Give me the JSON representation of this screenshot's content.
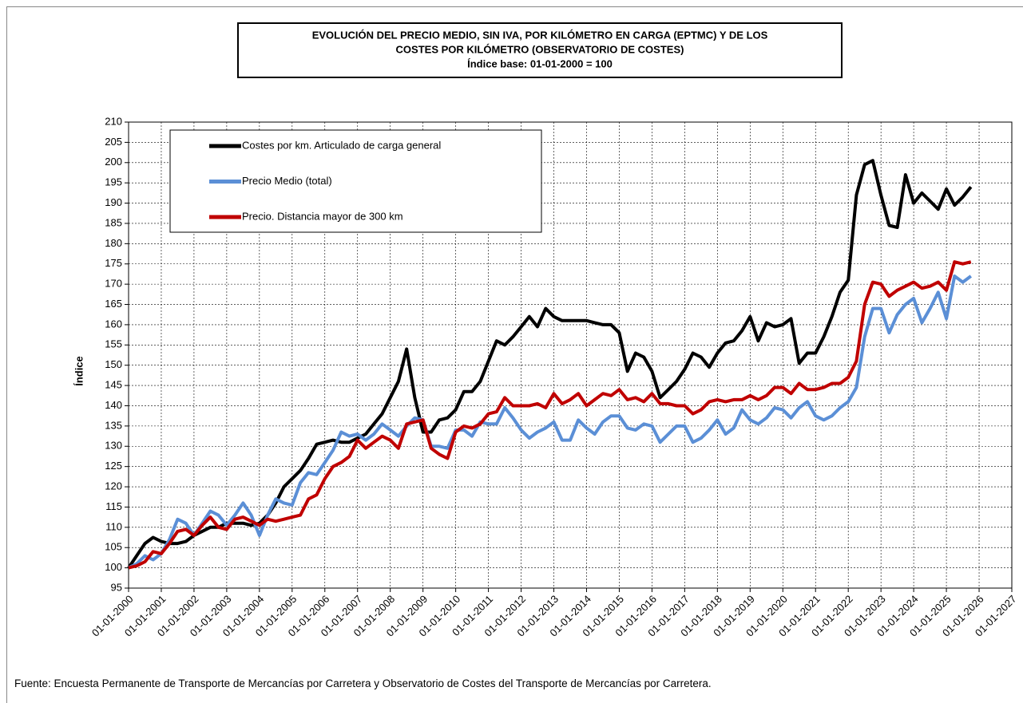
{
  "chart_data": {
    "type": "line",
    "title": [
      "EVOLUCIÓN  DEL PRECIO MEDIO, SIN IVA, POR KILÓMETRO  EN CARGA  (EPTMC)  Y DE LOS",
      "COSTES  POR KILÓMETRO  (OBSERVATORIO  DE COSTES)",
      "Índice base: 01-01-2000 = 100"
    ],
    "y_label": "Índice",
    "source": "Fuente: Encuesta Permanente de Transporte de Mercancías por Carretera y Observatorio de Costes del Transporte de Mercancías por Carretera.",
    "x": [
      "01-01-2000",
      "01-04-2000",
      "01-07-2000",
      "01-10-2000",
      "01-01-2001",
      "01-04-2001",
      "01-07-2001",
      "01-10-2001",
      "01-01-2002",
      "01-04-2002",
      "01-07-2002",
      "01-10-2002",
      "01-01-2003",
      "01-04-2003",
      "01-07-2003",
      "01-10-2003",
      "01-01-2004",
      "01-04-2004",
      "01-07-2004",
      "01-10-2004",
      "01-01-2005",
      "01-04-2005",
      "01-07-2005",
      "01-10-2005",
      "01-01-2006",
      "01-04-2006",
      "01-07-2006",
      "01-10-2006",
      "01-01-2007",
      "01-04-2007",
      "01-07-2007",
      "01-10-2007",
      "01-01-2008",
      "01-04-2008",
      "01-07-2008",
      "01-10-2008",
      "01-01-2009",
      "01-04-2009",
      "01-07-2009",
      "01-10-2009",
      "01-01-2010",
      "01-04-2010",
      "01-07-2010",
      "01-10-2010",
      "01-01-2011",
      "01-04-2011",
      "01-07-2011",
      "01-10-2011",
      "01-01-2012",
      "01-04-2012",
      "01-07-2012",
      "01-10-2012",
      "01-01-2013",
      "01-04-2013",
      "01-07-2013",
      "01-10-2013",
      "01-01-2014",
      "01-04-2014",
      "01-07-2014",
      "01-10-2014",
      "01-01-2015",
      "01-04-2015",
      "01-07-2015",
      "01-10-2015",
      "01-01-2016",
      "01-04-2016",
      "01-07-2016",
      "01-10-2016",
      "01-01-2017",
      "01-04-2017",
      "01-07-2017",
      "01-10-2017",
      "01-01-2018",
      "01-04-2018",
      "01-07-2018",
      "01-10-2018",
      "01-01-2019",
      "01-04-2019",
      "01-07-2019",
      "01-10-2019",
      "01-01-2020",
      "01-04-2020",
      "01-07-2020",
      "01-10-2020",
      "01-01-2021",
      "01-04-2021",
      "01-07-2021",
      "01-10-2021",
      "01-01-2022",
      "01-04-2022",
      "01-07-2022",
      "01-10-2022",
      "01-01-2023",
      "01-04-2023",
      "01-07-2023",
      "01-10-2023",
      "01-01-2024",
      "01-04-2024",
      "01-07-2024",
      "01-10-2024",
      "01-01-2025",
      "01-04-2025",
      "01-07-2025",
      "01-10-2025"
    ],
    "series": [
      {
        "name": "Costes por km. Articulado de carga general",
        "color": "#000000",
        "values": [
          100,
          103,
          106,
          107.5,
          106.5,
          106,
          106,
          106.5,
          108,
          109,
          110,
          110,
          111,
          111,
          111,
          110.5,
          111,
          113,
          116,
          120,
          122,
          124,
          127,
          130.5,
          131,
          131.5,
          131,
          131,
          132,
          133,
          135.5,
          138,
          142,
          146,
          154,
          142,
          133.5,
          133.5,
          136.5,
          137,
          139,
          143.5,
          143.5,
          146,
          151,
          156,
          155,
          157,
          159.5,
          162,
          159.5,
          164,
          162,
          161,
          161,
          161,
          161,
          160.5,
          160,
          160,
          158,
          148.5,
          153,
          152,
          148.5,
          142,
          144,
          146,
          149,
          153,
          152,
          149.5,
          153,
          155.5,
          156,
          158.5,
          162,
          156,
          160.5,
          159.5,
          160,
          161.5,
          150.5,
          153,
          153,
          157,
          162,
          168,
          171,
          192,
          199.5,
          200.5,
          192,
          184.5,
          184,
          197,
          190,
          192.5,
          190.5,
          188.5,
          193.5,
          189.5,
          191.5,
          194
        ]
      },
      {
        "name": "Precio Medio (total)",
        "color": "#5b8fd6",
        "values": [
          100,
          101,
          103,
          102,
          103.5,
          107,
          112,
          111,
          108,
          111,
          114,
          113,
          110.5,
          113,
          116,
          113,
          108,
          113,
          117,
          116,
          115.5,
          121,
          123.5,
          123,
          126,
          129,
          133.5,
          132.5,
          133,
          131.5,
          133,
          135.5,
          134,
          132.5,
          135,
          137,
          136.5,
          130,
          130,
          129.5,
          134,
          134,
          132.5,
          136,
          135.5,
          135.5,
          139.5,
          137,
          134,
          132,
          133.5,
          134.5,
          136,
          131.5,
          131.5,
          136.5,
          134.5,
          133,
          136,
          137.5,
          137.5,
          134.5,
          134,
          135.5,
          135,
          131,
          133,
          135,
          135,
          131,
          132,
          134,
          136.5,
          133,
          134.5,
          139,
          136.5,
          135.5,
          137,
          139.5,
          139,
          137,
          139.5,
          141,
          137.5,
          136.5,
          137.5,
          139.5,
          141,
          144.5,
          157,
          164,
          164,
          158,
          162.5,
          165,
          166.5,
          160.5,
          164,
          168,
          161.5,
          172,
          170.5,
          172
        ]
      },
      {
        "name": "Precio. Distancia mayor de 300 km",
        "color": "#c00000",
        "values": [
          100,
          100.5,
          101.5,
          104,
          103.5,
          106,
          109,
          109.5,
          108,
          110.5,
          112.5,
          110,
          109.5,
          112,
          112.5,
          111.5,
          110.5,
          112,
          111.5,
          112,
          112.5,
          113,
          117,
          118,
          122,
          125,
          126,
          127.5,
          131.5,
          129.5,
          131,
          132.5,
          131.5,
          129.5,
          135.5,
          136,
          136.5,
          129.5,
          128,
          127,
          133.5,
          135,
          134.5,
          135.5,
          138,
          138.5,
          142,
          140,
          140,
          140,
          140.5,
          139.5,
          143,
          140.5,
          141.5,
          143,
          140,
          141.5,
          143,
          142.5,
          144,
          141.5,
          142,
          141,
          143,
          140.5,
          140.5,
          140,
          140,
          138,
          139,
          141,
          141.5,
          141,
          141.5,
          141.5,
          142.5,
          141.5,
          142.5,
          144.5,
          144.5,
          143,
          145.5,
          144,
          144,
          144.5,
          145.5,
          145.5,
          147,
          151,
          165,
          170.5,
          170,
          167,
          168.5,
          169.5,
          170.5,
          169,
          169.5,
          170.5,
          168.5,
          175.5,
          175,
          175.5
        ]
      }
    ],
    "xlim": [
      "01-01-2000",
      "01-01-2027"
    ],
    "xticks": [
      "01-01-2000",
      "01-01-2001",
      "01-01-2002",
      "01-01-2003",
      "01-01-2004",
      "01-01-2005",
      "01-01-2006",
      "01-01-2007",
      "01-01-2008",
      "01-01-2009",
      "01-01-2010",
      "01-01-2011",
      "01-01-2012",
      "01-01-2013",
      "01-01-2014",
      "01-01-2015",
      "01-01-2016",
      "01-01-2017",
      "01-01-2018",
      "01-01-2019",
      "01-01-2020",
      "01-01-2021",
      "01-01-2022",
      "01-01-2023",
      "01-01-2024",
      "01-01-2025",
      "01-01-2026",
      "01-01-2027"
    ],
    "ylim": [
      95,
      210
    ],
    "yticks": [
      95,
      100,
      105,
      110,
      115,
      120,
      125,
      130,
      135,
      140,
      145,
      150,
      155,
      160,
      165,
      170,
      175,
      180,
      185,
      190,
      195,
      200,
      205,
      210
    ],
    "grid": true,
    "legend": "upper left"
  }
}
